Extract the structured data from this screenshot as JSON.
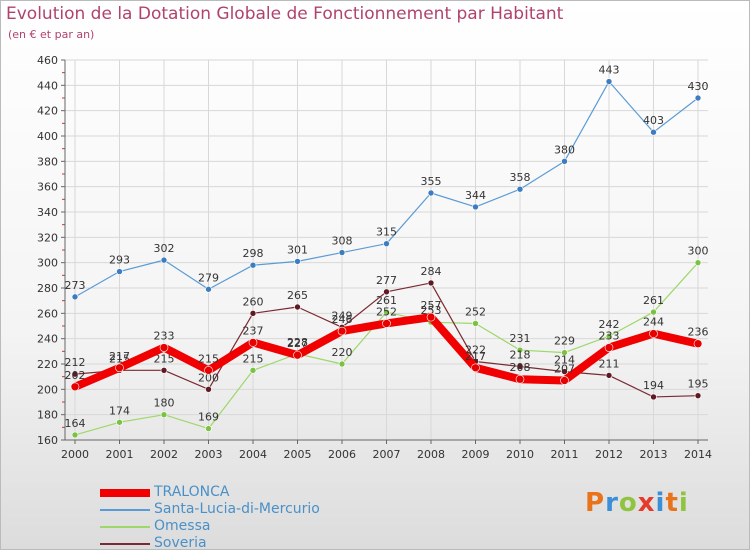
{
  "title": "Evolution de la Dotation Globale de Fonctionnement par Habitant",
  "subtitle": "(en € et par an)",
  "logo": {
    "text": "Proxiti",
    "letter_colors": [
      "#e8731a",
      "#3a8fd6",
      "#8fc43f",
      "#e63a2a",
      "#3a8fd6",
      "#e8731a",
      "#8fc43f"
    ]
  },
  "colors": {
    "axis": "#666666",
    "grid": "#d8d8d8",
    "axis_tick_marks": "#cc3333"
  },
  "chart_data": {
    "type": "line",
    "title": "Evolution de la Dotation Globale de Fonctionnement par Habitant",
    "subtitle": "(en € et par an)",
    "xlabel": "",
    "ylabel": "",
    "ylim": [
      160,
      460
    ],
    "yticks": [
      160,
      180,
      200,
      220,
      240,
      260,
      280,
      300,
      320,
      340,
      360,
      380,
      400,
      420,
      440,
      460
    ],
    "grid": true,
    "legend_position": "bottom-left",
    "x": [
      "2000",
      "2001",
      "2002",
      "2003",
      "2004",
      "2005",
      "2006",
      "2007",
      "2008",
      "2009",
      "2010",
      "2011",
      "2012",
      "2013",
      "2014"
    ],
    "series": [
      {
        "name": "Santa-Lucia-di-Mercurio",
        "color": "#5b9bd5",
        "marker": "#3e7cc0",
        "values": [
          273,
          293,
          302,
          279,
          298,
          301,
          308,
          315,
          355,
          344,
          358,
          380,
          443,
          403,
          430
        ]
      },
      {
        "name": "Omessa",
        "color": "#9ed86a",
        "marker": "#7cc242",
        "values": [
          164,
          174,
          180,
          169,
          215,
          228,
          220,
          261,
          253,
          252,
          231,
          229,
          242,
          261,
          300
        ]
      },
      {
        "name": "Soveria",
        "color": "#7a2a32",
        "marker": "#5e1a22",
        "values": [
          212,
          215,
          215,
          200,
          260,
          265,
          249,
          277,
          284,
          222,
          218,
          214,
          211,
          194,
          195
        ]
      },
      {
        "name": "TRALONCA",
        "color": "#f00000",
        "marker": "#e60000",
        "values": [
          202,
          217,
          233,
          215,
          237,
          227,
          246,
          252,
          257,
          217,
          208,
          207,
          233,
          244,
          236
        ]
      }
    ]
  },
  "legend_order": [
    "TRALONCA",
    "Santa-Lucia-di-Mercurio",
    "Omessa",
    "Soveria"
  ]
}
